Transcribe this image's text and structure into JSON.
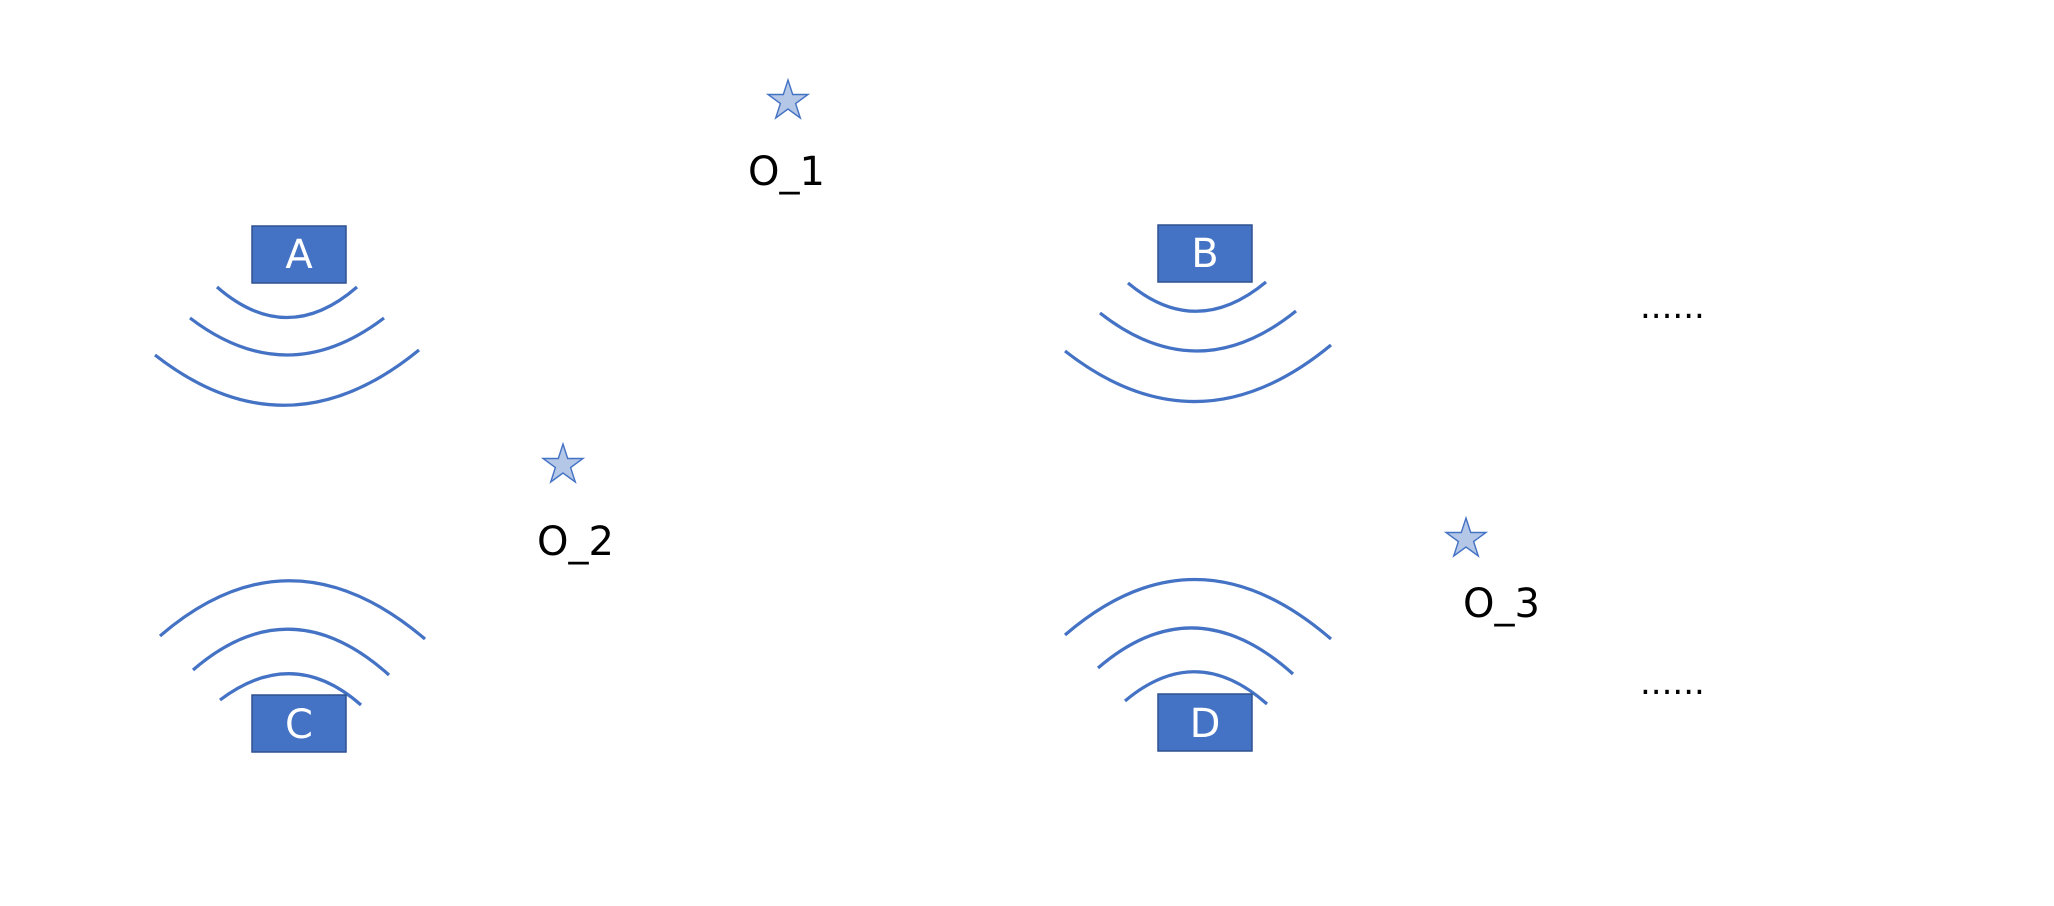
{
  "colors": {
    "node_fill": "#4472c4",
    "node_border": "#2f528f",
    "wave": "#4472c4",
    "star_fill": "#b4c7e7",
    "star_border": "#4472c4",
    "label_text": "#000000",
    "node_text": "#ffffff"
  },
  "nodes": {
    "a": {
      "label": "A"
    },
    "b": {
      "label": "B"
    },
    "c": {
      "label": "C"
    },
    "d": {
      "label": "D"
    }
  },
  "objects": {
    "o1": {
      "label": "O_1",
      "icon": "star-icon"
    },
    "o2": {
      "label": "O_2",
      "icon": "star-icon"
    },
    "o3": {
      "label": "O_3",
      "icon": "star-icon"
    }
  },
  "continuation": {
    "top": "......",
    "bottom": "......"
  }
}
